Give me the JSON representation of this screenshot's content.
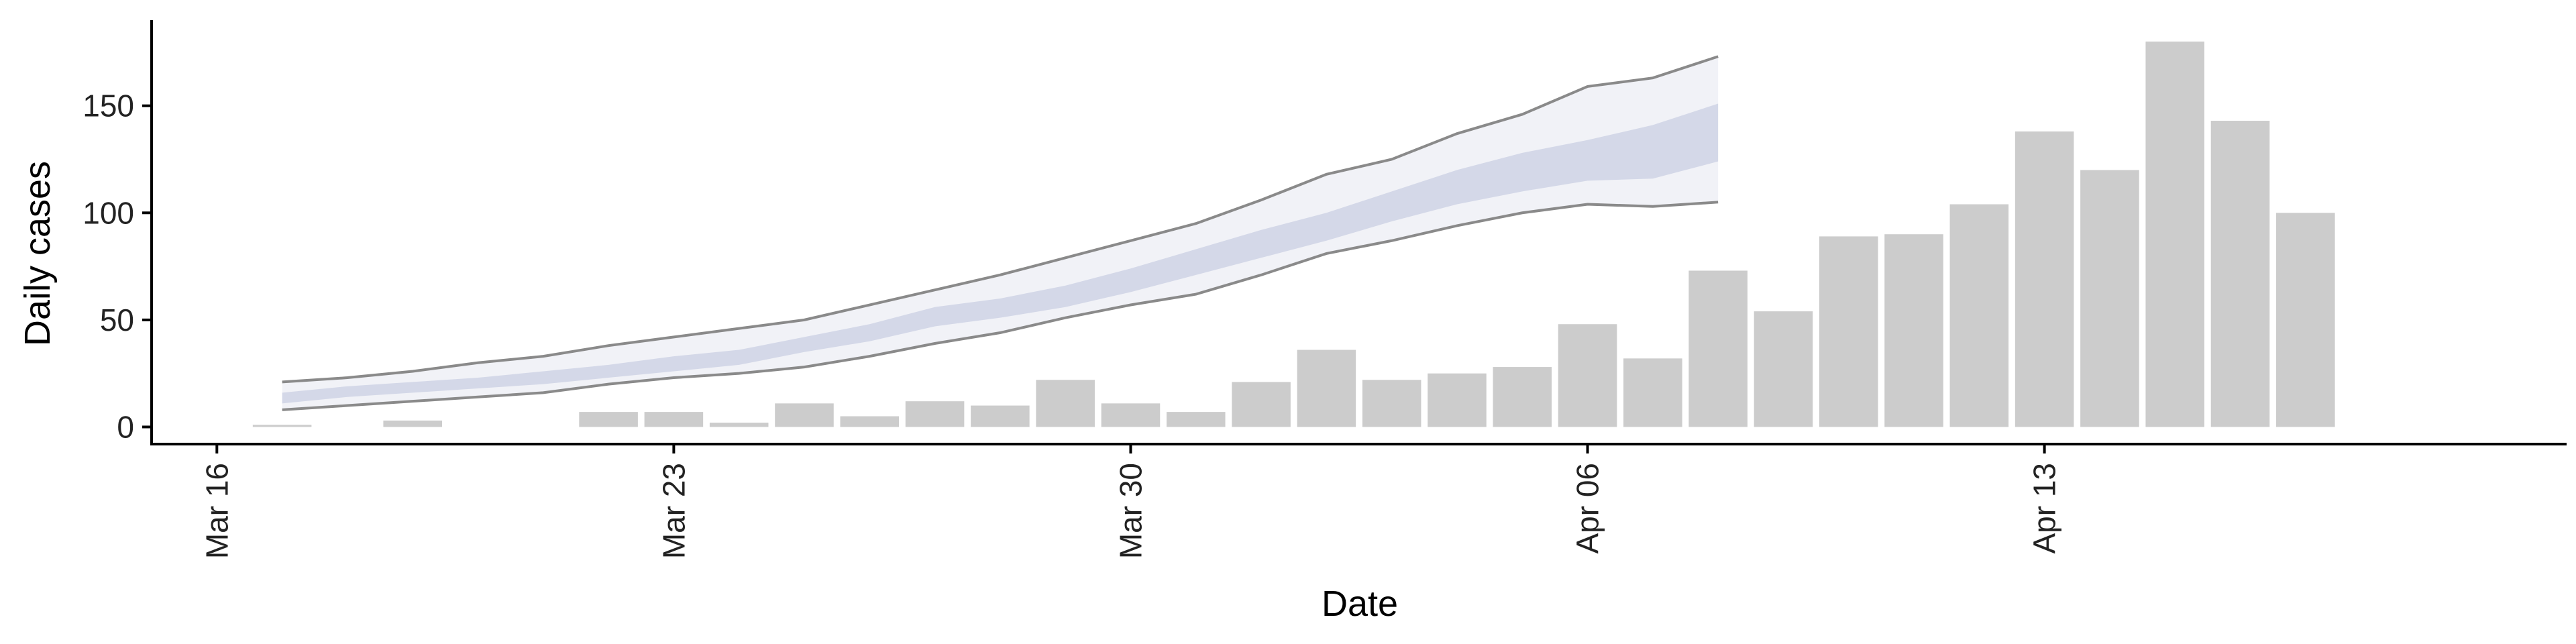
{
  "chart_data": {
    "type": "bar",
    "xlabel": "Date",
    "ylabel": "Daily cases",
    "ylim": [
      -8,
      190
    ],
    "xlim": [
      "2020-03-15",
      "2020-04-21"
    ],
    "y_ticks": [
      0,
      50,
      100,
      150
    ],
    "x_ticks": [
      {
        "date": "2020-03-16",
        "label": "Mar 16"
      },
      {
        "date": "2020-03-23",
        "label": "Mar 23"
      },
      {
        "date": "2020-03-30",
        "label": "Mar 30"
      },
      {
        "date": "2020-04-06",
        "label": "Apr 06"
      },
      {
        "date": "2020-04-13",
        "label": "Apr 13"
      }
    ],
    "bars": [
      {
        "date": "2020-03-17",
        "value": 1
      },
      {
        "date": "2020-03-19",
        "value": 3
      },
      {
        "date": "2020-03-22",
        "value": 7
      },
      {
        "date": "2020-03-23",
        "value": 7
      },
      {
        "date": "2020-03-24",
        "value": 2
      },
      {
        "date": "2020-03-25",
        "value": 11
      },
      {
        "date": "2020-03-26",
        "value": 5
      },
      {
        "date": "2020-03-27",
        "value": 12
      },
      {
        "date": "2020-03-28",
        "value": 10
      },
      {
        "date": "2020-03-29",
        "value": 22
      },
      {
        "date": "2020-03-30",
        "value": 11
      },
      {
        "date": "2020-03-31",
        "value": 7
      },
      {
        "date": "2020-04-01",
        "value": 21
      },
      {
        "date": "2020-04-02",
        "value": 36
      },
      {
        "date": "2020-04-03",
        "value": 22
      },
      {
        "date": "2020-04-04",
        "value": 25
      },
      {
        "date": "2020-04-05",
        "value": 28
      },
      {
        "date": "2020-04-06",
        "value": 48
      },
      {
        "date": "2020-04-07",
        "value": 32
      },
      {
        "date": "2020-04-08",
        "value": 73
      },
      {
        "date": "2020-04-09",
        "value": 54
      },
      {
        "date": "2020-04-10",
        "value": 89
      },
      {
        "date": "2020-04-11",
        "value": 90
      },
      {
        "date": "2020-04-12",
        "value": 104
      },
      {
        "date": "2020-04-13",
        "value": 138
      },
      {
        "date": "2020-04-14",
        "value": 120
      },
      {
        "date": "2020-04-15",
        "value": 180
      },
      {
        "date": "2020-04-16",
        "value": 143
      },
      {
        "date": "2020-04-17",
        "value": 100
      }
    ],
    "projection_band": [
      {
        "date": "2020-03-17",
        "lower": 8,
        "inner_lower": 11,
        "inner_upper": 16,
        "upper": 21
      },
      {
        "date": "2020-03-18",
        "lower": 10,
        "inner_lower": 14,
        "inner_upper": 19,
        "upper": 23
      },
      {
        "date": "2020-03-19",
        "lower": 12,
        "inner_lower": 16,
        "inner_upper": 21,
        "upper": 26
      },
      {
        "date": "2020-03-20",
        "lower": 14,
        "inner_lower": 18,
        "inner_upper": 23,
        "upper": 30
      },
      {
        "date": "2020-03-21",
        "lower": 16,
        "inner_lower": 20,
        "inner_upper": 26,
        "upper": 33
      },
      {
        "date": "2020-03-22",
        "lower": 20,
        "inner_lower": 23,
        "inner_upper": 29,
        "upper": 38
      },
      {
        "date": "2020-03-23",
        "lower": 23,
        "inner_lower": 26,
        "inner_upper": 33,
        "upper": 42
      },
      {
        "date": "2020-03-24",
        "lower": 25,
        "inner_lower": 29,
        "inner_upper": 36,
        "upper": 46
      },
      {
        "date": "2020-03-25",
        "lower": 28,
        "inner_lower": 35,
        "inner_upper": 42,
        "upper": 50
      },
      {
        "date": "2020-03-26",
        "lower": 33,
        "inner_lower": 40,
        "inner_upper": 48,
        "upper": 57
      },
      {
        "date": "2020-03-27",
        "lower": 39,
        "inner_lower": 47,
        "inner_upper": 56,
        "upper": 64
      },
      {
        "date": "2020-03-28",
        "lower": 44,
        "inner_lower": 51,
        "inner_upper": 60,
        "upper": 71
      },
      {
        "date": "2020-03-29",
        "lower": 51,
        "inner_lower": 56,
        "inner_upper": 66,
        "upper": 79
      },
      {
        "date": "2020-03-30",
        "lower": 57,
        "inner_lower": 63,
        "inner_upper": 74,
        "upper": 87
      },
      {
        "date": "2020-03-31",
        "lower": 62,
        "inner_lower": 71,
        "inner_upper": 83,
        "upper": 95
      },
      {
        "date": "2020-04-01",
        "lower": 71,
        "inner_lower": 79,
        "inner_upper": 92,
        "upper": 106
      },
      {
        "date": "2020-04-02",
        "lower": 81,
        "inner_lower": 87,
        "inner_upper": 100,
        "upper": 118
      },
      {
        "date": "2020-04-03",
        "lower": 87,
        "inner_lower": 96,
        "inner_upper": 110,
        "upper": 125
      },
      {
        "date": "2020-04-04",
        "lower": 94,
        "inner_lower": 104,
        "inner_upper": 120,
        "upper": 137
      },
      {
        "date": "2020-04-05",
        "lower": 100,
        "inner_lower": 110,
        "inner_upper": 128,
        "upper": 146
      },
      {
        "date": "2020-04-06",
        "lower": 104,
        "inner_lower": 115,
        "inner_upper": 134,
        "upper": 159
      },
      {
        "date": "2020-04-07",
        "lower": 103,
        "inner_lower": 116,
        "inner_upper": 141,
        "upper": 163
      },
      {
        "date": "2020-04-08",
        "lower": 105,
        "inner_lower": 124,
        "inner_upper": 151,
        "upper": 173
      }
    ],
    "grid": false,
    "colors": {
      "bars": "#cccccc",
      "band_outer": "#eef0f6",
      "band_inner": "#c9cfe3",
      "band_edge": "#8a8a8a",
      "axis": "#000000"
    }
  }
}
